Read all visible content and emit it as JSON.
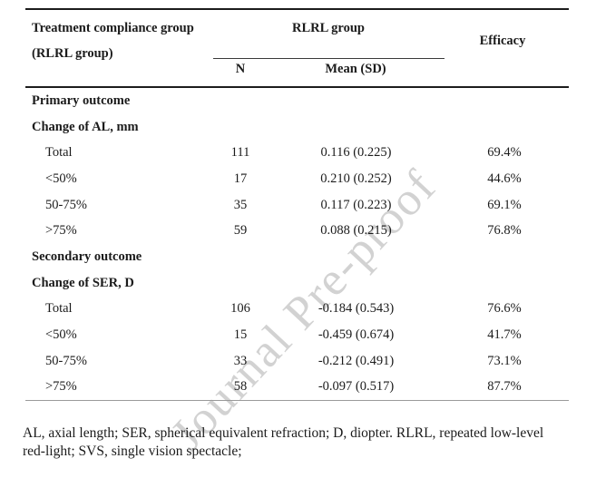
{
  "watermark": {
    "text": "Journal Pre-proof"
  },
  "table": {
    "header": {
      "col1_line1": "Treatment compliance group",
      "col1_line2": "(RLRL group)",
      "group_col_title": "RLRL group",
      "sub_n": "N",
      "sub_mean": "Mean (SD)",
      "efficacy": "Efficacy"
    },
    "rows": [
      {
        "label": "Primary outcome",
        "n": "",
        "mean": "",
        "efficacy": ""
      },
      {
        "label": "Change of AL, mm",
        "n": "",
        "mean": "",
        "efficacy": ""
      },
      {
        "label": "Total",
        "n": "111",
        "mean": "0.116 (0.225)",
        "efficacy": "69.4%"
      },
      {
        "label": "<50%",
        "n": "17",
        "mean": "0.210 (0.252)",
        "efficacy": "44.6%"
      },
      {
        "label": "50-75%",
        "n": "35",
        "mean": "0.117 (0.223)",
        "efficacy": "69.1%"
      },
      {
        "label": ">75%",
        "n": "59",
        "mean": "0.088 (0.215)",
        "efficacy": "76.8%"
      },
      {
        "label": "Secondary outcome",
        "n": "",
        "mean": "",
        "efficacy": ""
      },
      {
        "label": "Change of SER, D",
        "n": "",
        "mean": "",
        "efficacy": ""
      },
      {
        "label": "Total",
        "n": "106",
        "mean": "-0.184 (0.543)",
        "efficacy": "76.6%"
      },
      {
        "label": "<50%",
        "n": "15",
        "mean": "-0.459 (0.674)",
        "efficacy": "41.7%"
      },
      {
        "label": "50-75%",
        "n": "33",
        "mean": "-0.212 (0.491)",
        "efficacy": "73.1%"
      },
      {
        "label": ">75%",
        "n": "58",
        "mean": "-0.097 (0.517)",
        "efficacy": "87.7%"
      }
    ]
  },
  "footnote": {
    "line1": "AL, axial length; SER, spherical equivalent refraction; D, diopter. RLRL, repeated low-level",
    "line2": "red-light; SVS, single vision spectacle;"
  },
  "colors": {
    "background": "#ffffff",
    "text": "#1b1b1b",
    "rule_dark": "#1c1c1c",
    "rule_light": "#9a9a9a",
    "watermark": "#d2d2d2"
  }
}
